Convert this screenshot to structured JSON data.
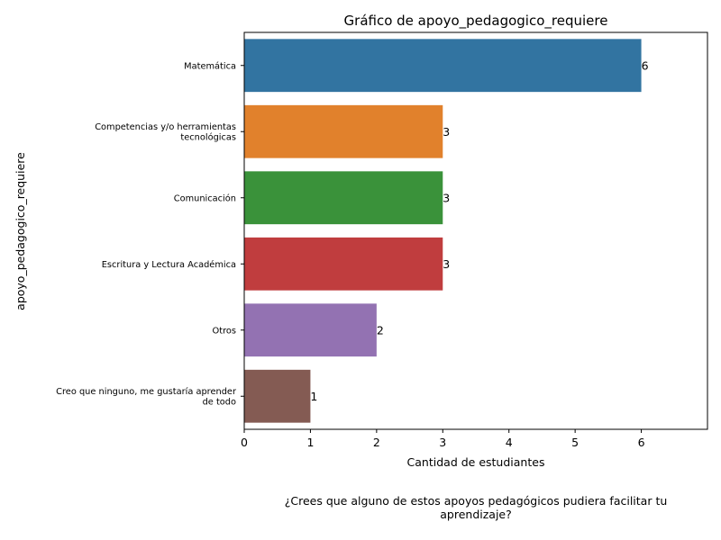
{
  "chart_data": {
    "type": "bar",
    "orientation": "horizontal",
    "title": "Gráfico de apoyo_pedagogico_requiere",
    "xlabel": "Cantidad de estudiantes",
    "ylabel": "apoyo_pedagogico_requiere",
    "categories": [
      "Matemática",
      "Competencias y/o herramientas tecnológicas",
      "Comunicación",
      "Escritura y Lectura Académica",
      "Otros",
      "Creo que ninguno, me gustaría aprender de todo"
    ],
    "category_lines": [
      [
        "Matemática"
      ],
      [
        "Competencias y/o herramientas",
        "tecnológicas"
      ],
      [
        "Comunicación"
      ],
      [
        "Escritura y Lectura Académica"
      ],
      [
        "Otros"
      ],
      [
        "Creo que ninguno, me gustaría aprender",
        "de todo"
      ]
    ],
    "values": [
      6,
      3,
      3,
      3,
      2,
      1
    ],
    "colors": [
      "#3274a1",
      "#e1812c",
      "#3a923a",
      "#c03d3e",
      "#9372b2",
      "#845b53"
    ],
    "xlim": [
      0,
      7
    ],
    "xticks": [
      "0",
      "1",
      "2",
      "3",
      "4",
      "5",
      "6"
    ],
    "grid": false
  },
  "caption": "¿Crees que alguno de estos apoyos pedagógicos pudiera facilitar tu aprendizaje?"
}
